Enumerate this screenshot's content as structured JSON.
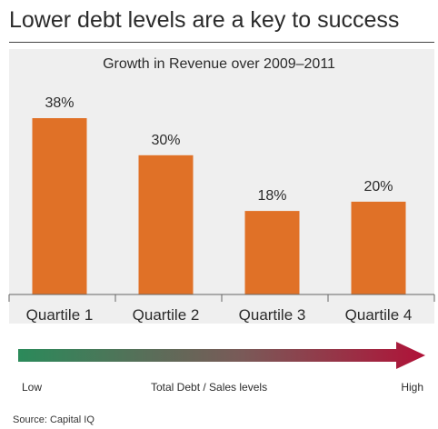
{
  "headline": "Lower debt levels are a key to success",
  "legend": {
    "low": "Low",
    "middle": "Total Debt / Sales levels",
    "high": "High",
    "gradient_colors": [
      "#2b8a5a",
      "#7a5a58",
      "#b01238"
    ]
  },
  "source": "Source: Capital IQ",
  "colors": {
    "bar": "#e07127",
    "panel": "#efefef"
  },
  "chart_data": {
    "type": "bar",
    "title": "Growth in Revenue over 2009–2011",
    "categories": [
      "Quartile 1",
      "Quartile 2",
      "Quartile 3",
      "Quartile 4"
    ],
    "values": [
      38,
      30,
      18,
      20
    ],
    "data_labels": [
      "38%",
      "30%",
      "18%",
      "20%"
    ],
    "xlabel": "",
    "ylabel": "",
    "ylim": [
      0,
      40
    ],
    "grid": false,
    "legend": "none"
  }
}
